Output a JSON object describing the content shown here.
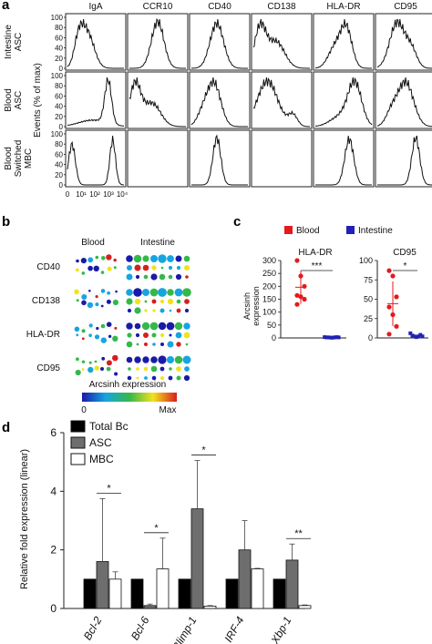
{
  "panel_labels": {
    "a": "a",
    "b": "b",
    "c": "c",
    "d": "d"
  },
  "panel_a": {
    "columns": [
      "IgA",
      "CCR10",
      "CD40",
      "CD138",
      "HLA-DR",
      "CD95"
    ],
    "rows": [
      [
        "Intestine",
        "ASC"
      ],
      [
        "Blood",
        "ASC"
      ],
      [
        "Blood",
        "Switched",
        "MBC"
      ]
    ],
    "ylabel": "Events (% of max)",
    "yticks": [
      "0",
      "20",
      "40",
      "60",
      "80",
      "100"
    ],
    "xticks": [
      "0",
      "10¹",
      "10²",
      "10³",
      "10⁴"
    ]
  },
  "panel_b": {
    "groups": [
      "Blood",
      "Intestine"
    ],
    "markers": [
      "CD40",
      "CD138",
      "HLA-DR",
      "CD95"
    ],
    "colorbar_title": "Arcsinh expression",
    "colorbar_min": "0",
    "colorbar_max": "Max",
    "colors": {
      "low": "#1a1aa8",
      "mid1": "#16a5e0",
      "mid2": "#35b84a",
      "mid3": "#f2e21c",
      "high": "#d81e1e"
    }
  },
  "panel_c": {
    "legend": [
      {
        "label": "Blood",
        "color": "#e41a1c"
      },
      {
        "label": "Intestine",
        "color": "#2121b4"
      }
    ],
    "ylabel": [
      "Arcsinh",
      "expression"
    ],
    "plots": [
      {
        "title": "HLA-DR",
        "yticks": [
          "0",
          "50",
          "100",
          "150",
          "200",
          "250",
          "300"
        ],
        "ylim": [
          0,
          300
        ],
        "blood": [
          330,
          240,
          200,
          165,
          160,
          150,
          130
        ],
        "intestine": [
          3,
          2,
          2,
          1,
          1,
          2,
          3,
          2
        ],
        "sig": "***"
      },
      {
        "title": "CD95",
        "yticks": [
          "0",
          "25",
          "50",
          "75",
          "100"
        ],
        "ylim": [
          0,
          100
        ],
        "blood": [
          87,
          80,
          53,
          40,
          30,
          15,
          5
        ],
        "intestine": [
          6,
          3,
          2,
          1,
          2,
          4,
          2
        ],
        "sig": "*"
      }
    ]
  },
  "chart_data": {
    "type": "bar",
    "categories": [
      "Bcl-2",
      "Bcl-6",
      "Blimp-1",
      "IRF-4",
      "Xbp-1"
    ],
    "series": [
      {
        "name": "Total Bc",
        "values": [
          1,
          1,
          1,
          1,
          1
        ],
        "errors": [
          0,
          0,
          0,
          0,
          0
        ],
        "color": "#000000"
      },
      {
        "name": "ASC",
        "values": [
          1.6,
          0.1,
          3.4,
          2.0,
          1.65
        ],
        "errors": [
          2.15,
          0.05,
          1.65,
          1.0,
          0.55
        ],
        "color": "#6e6e6e"
      },
      {
        "name": "MBC",
        "values": [
          1.0,
          1.35,
          0.08,
          1.35,
          0.1
        ],
        "errors": [
          0.25,
          1.05,
          0.02,
          0.02,
          0.02
        ],
        "color": "#ffffff"
      }
    ],
    "ylabel": "Relative fold expression (linear)",
    "yticks": [
      "0",
      "2",
      "4",
      "6"
    ],
    "ylim": [
      0,
      6
    ],
    "significance": [
      "*",
      "*",
      "*",
      "",
      "**"
    ]
  }
}
